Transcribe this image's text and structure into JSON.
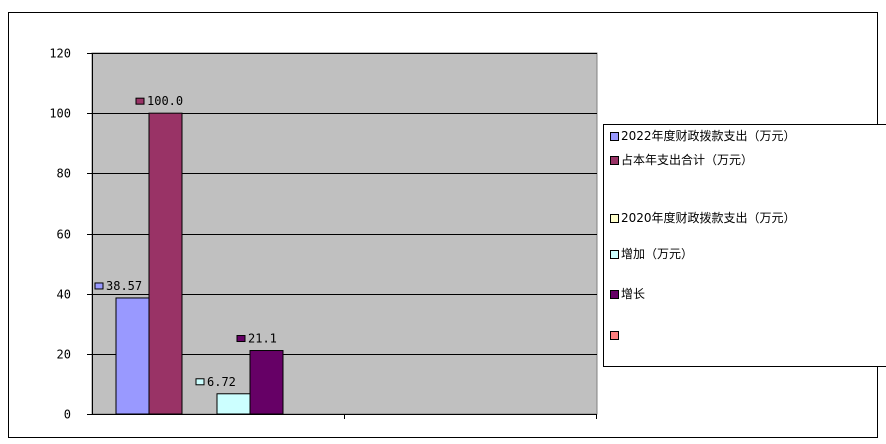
{
  "chart_data": {
    "type": "bar",
    "title": "",
    "xlabel": "",
    "ylabel": "",
    "ylim": [
      0,
      120
    ],
    "yticks": [
      "0",
      "20",
      "40",
      "60",
      "80",
      "100",
      "120"
    ],
    "grid": true,
    "legend_position": "right",
    "groups": [
      {
        "bars": [
          {
            "series": "2022年度财政拨款支出（万元）",
            "value": 38.57,
            "label": "38.57"
          },
          {
            "series": "占本年支出合计（万元）",
            "value": 100.0,
            "label": "100.0"
          }
        ]
      },
      {
        "bars": [
          {
            "series": "增加（万元）",
            "value": 6.72,
            "label": "6.72"
          },
          {
            "series": "增长",
            "value": 21.1,
            "label": "21.1"
          }
        ]
      }
    ],
    "series": [
      {
        "name": "2022年度财政拨款支出（万元）",
        "color": "#9999ff"
      },
      {
        "name": "占本年支出合计（万元）",
        "color": "#993366"
      },
      {
        "name": "2020年度财政拨款支出（万元）",
        "color": "#ffffcc"
      },
      {
        "name": "增加（万元）",
        "color": "#ccffff"
      },
      {
        "name": "增长",
        "color": "#660066"
      },
      {
        "name": "",
        "color": "#ff8080"
      }
    ],
    "plot_background": "#c0c0c0"
  }
}
